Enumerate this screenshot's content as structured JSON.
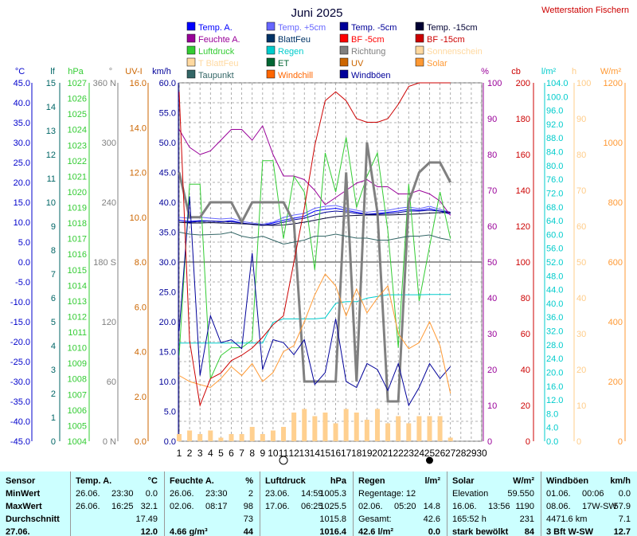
{
  "header": {
    "title": "Juni 2025",
    "station": "Wetterstation Fischern"
  },
  "legend": [
    {
      "label": "Temp. A.",
      "color": "#0000ff"
    },
    {
      "label": "Temp. +5cm",
      "color": "#6666ff"
    },
    {
      "label": "Temp. -5cm",
      "color": "#000099"
    },
    {
      "label": "Temp. -15cm",
      "color": "#000033"
    },
    {
      "label": "Feuchte A.",
      "color": "#990099"
    },
    {
      "label": "BlattFeu",
      "color": "#003366"
    },
    {
      "label": "BF -5cm",
      "color": "#ff0000"
    },
    {
      "label": "BF -15cm",
      "color": "#cc0000"
    },
    {
      "label": "Luftdruck",
      "color": "#33cc33"
    },
    {
      "label": "Regen",
      "color": "#00cccc"
    },
    {
      "label": "Richtung",
      "color": "#808080"
    },
    {
      "label": "Sonnenschein",
      "color": "#ffd9a0"
    },
    {
      "label": "T BlattFeu",
      "color": "#ffd9a0"
    },
    {
      "label": "ET",
      "color": "#006633"
    },
    {
      "label": "UV",
      "color": "#cc6600"
    },
    {
      "label": "Solar",
      "color": "#ff9933"
    },
    {
      "label": "Taupunkt",
      "color": "#336666"
    },
    {
      "label": "Windchill",
      "color": "#ff6600"
    },
    {
      "label": "Windböen",
      "color": "#000099"
    }
  ],
  "colors": {
    "grid": "#999999",
    "pressure": "#33cc33",
    "rain": "#00cccc",
    "humidity": "#990099",
    "wind": "#000099",
    "direction": "#808080",
    "uv": "#cc6600",
    "solar": "#ff9933",
    "cb": "#cc0000",
    "bars": "#ffd090"
  },
  "axes": {
    "temp": {
      "unit": "°C",
      "ticks": [
        "45.0",
        "40.0",
        "35.0",
        "30.0",
        "25.0",
        "20.0",
        "15.0",
        "10.0",
        "5.0",
        "0.0",
        "-5.0",
        "-10.0",
        "-15.0",
        "-20.0",
        "-25.0",
        "-30.0",
        "-35.0",
        "-40.0",
        "-45.0"
      ]
    },
    "lf": {
      "unit": "lf",
      "ticks": [
        "15",
        "14",
        "13",
        "12",
        "11",
        "10",
        "9",
        "8",
        "7",
        "6",
        "5",
        "4",
        "3",
        "2",
        "1",
        "0"
      ]
    },
    "hpa": {
      "unit": "hPa",
      "ticks": [
        "1027",
        "1026",
        "1025",
        "1024",
        "1023",
        "1022",
        "1021",
        "1020",
        "1019",
        "1018",
        "1017",
        "1016",
        "1015",
        "1014",
        "1013",
        "1012",
        "1011",
        "1010",
        "1009",
        "1008",
        "1007",
        "1006",
        "1005",
        "1004"
      ]
    },
    "dir": {
      "unit": "°",
      "ticks": [
        "360 N",
        "300",
        "240",
        "180 S",
        "120",
        "60",
        "0 N"
      ]
    },
    "uvi": {
      "unit": "UV-I",
      "ticks": [
        "16.0",
        "14.0",
        "12.0",
        "10.0",
        "8.0",
        "6.0",
        "4.0",
        "2.0",
        "0.0"
      ]
    },
    "kmh": {
      "unit": "km/h",
      "ticks": [
        "60.0",
        "55.0",
        "50.0",
        "45.0",
        "40.0",
        "35.0",
        "30.0",
        "25.0",
        "20.0",
        "15.0",
        "10.0",
        "5.0",
        "0.0"
      ]
    },
    "pct": {
      "unit": "%",
      "ticks": [
        "100",
        "90",
        "80",
        "70",
        "60",
        "50",
        "40",
        "30",
        "20",
        "10",
        "0"
      ]
    },
    "cb": {
      "unit": "cb",
      "ticks": [
        "200",
        "180",
        "160",
        "140",
        "120",
        "100",
        "80",
        "60",
        "40",
        "20",
        "0"
      ]
    },
    "lm2": {
      "unit": "l/m²",
      "ticks": [
        "104.0",
        "100.0",
        "96.0",
        "92.0",
        "88.0",
        "84.0",
        "80.0",
        "76.0",
        "72.0",
        "68.0",
        "64.0",
        "60.0",
        "56.0",
        "52.0",
        "48.0",
        "44.0",
        "40.0",
        "36.0",
        "32.0",
        "28.0",
        "24.0",
        "20.0",
        "16.0",
        "12.0",
        "8.0",
        "4.0",
        "0.0"
      ]
    },
    "h": {
      "unit": "h",
      "ticks": [
        "100",
        "90",
        "80",
        "70",
        "60",
        "50",
        "40",
        "30",
        "20",
        "10",
        "0"
      ]
    },
    "wm2": {
      "unit": "W/m²",
      "ticks": [
        "1200",
        "1000",
        "800",
        "600",
        "400",
        "200",
        "0"
      ]
    },
    "days": [
      "1",
      "2",
      "3",
      "4",
      "5",
      "6",
      "7",
      "8",
      "9",
      "10",
      "11",
      "12",
      "13",
      "14",
      "15",
      "16",
      "17",
      "18",
      "19",
      "20",
      "21",
      "22",
      "23",
      "24",
      "25",
      "26",
      "27",
      "28",
      "29",
      "30"
    ]
  },
  "chart_data": {
    "type": "line",
    "title": "Juni 2025",
    "x": [
      1,
      2,
      3,
      4,
      5,
      6,
      7,
      8,
      9,
      10,
      11,
      12,
      13,
      14,
      15,
      16,
      17,
      18,
      19,
      20,
      21,
      22,
      23,
      24,
      25,
      26,
      27
    ],
    "series": [
      {
        "name": "Temp. A.",
        "axis": "temp",
        "values": [
          10.5,
          10.2,
          10.4,
          10.3,
          10.1,
          10.4,
          9.8,
          9.5,
          9.2,
          9.8,
          10.5,
          11.0,
          11.5,
          12.8,
          13.2,
          13.5,
          13.0,
          12.5,
          12.0,
          12.2,
          12.5,
          12.8,
          13.2,
          13.0,
          13.4,
          12.8,
          12.0
        ]
      },
      {
        "name": "Temp. +5cm",
        "axis": "temp",
        "values": [
          11.2,
          11.0,
          11.3,
          11.0,
          10.8,
          11.0,
          10.2,
          9.8,
          9.5,
          10.0,
          11.2,
          11.8,
          12.2,
          13.5,
          14.0,
          14.2,
          13.5,
          13.0,
          12.5,
          12.8,
          13.0,
          13.5,
          13.8,
          13.4,
          14.0,
          13.2,
          12.5
        ]
      },
      {
        "name": "Temp. -5cm",
        "axis": "temp",
        "values": [
          10.0,
          10.0,
          10.2,
          10.3,
          10.2,
          10.1,
          9.8,
          9.4,
          9.2,
          9.4,
          10.0,
          10.6,
          11.0,
          11.8,
          12.5,
          12.8,
          12.6,
          12.2,
          12.0,
          12.0,
          12.2,
          12.4,
          12.8,
          12.8,
          13.0,
          12.8,
          12.5
        ]
      },
      {
        "name": "Temp. -15cm",
        "axis": "temp",
        "values": [
          10.0,
          9.8,
          9.8,
          9.9,
          9.8,
          9.7,
          9.6,
          9.5,
          9.3,
          9.2,
          9.3,
          9.6,
          10.0,
          10.5,
          11.0,
          11.4,
          11.6,
          11.7,
          11.8,
          11.8,
          11.8,
          11.9,
          12.0,
          12.1,
          12.3,
          12.4,
          12.4
        ]
      },
      {
        "name": "Feuchte A.",
        "axis": "pct",
        "values": [
          87,
          82,
          80,
          81,
          84,
          87,
          87,
          84,
          88,
          80,
          74,
          74,
          73,
          70,
          66,
          68,
          70,
          72,
          73,
          71,
          71,
          69,
          69,
          70,
          69,
          67,
          63
        ]
      },
      {
        "name": "Luftdruck",
        "axis": "hpa",
        "values": [
          1009.5,
          1020.5,
          1020.5,
          1008.0,
          1009.5,
          1010.0,
          1010.0,
          1010.5,
          1022.0,
          1022.0,
          1017.0,
          1021.0,
          1020.0,
          1015.0,
          1022.5,
          1020.0,
          1023.5,
          1019.0,
          1021.0,
          1022.5,
          1017.5,
          1010.0,
          1020.5,
          1013.0,
          1016.5,
          1020.0,
          1017.0
        ]
      },
      {
        "name": "Regen",
        "axis": "lm2",
        "values": [
          28.5,
          28.5,
          28.5,
          28.5,
          28.5,
          28.5,
          28.5,
          28.5,
          28.5,
          34.5,
          35.5,
          35.5,
          35.5,
          35.5,
          35.8,
          40.0,
          40.5,
          40.5,
          41.5,
          42.0,
          42.5,
          42.5,
          42.5,
          42.5,
          42.6,
          42.6,
          42.6
        ]
      },
      {
        "name": "Richtung",
        "axis": "dir",
        "values": [
          270,
          225,
          225,
          240,
          240,
          240,
          220,
          240,
          240,
          240,
          240,
          220,
          60,
          60,
          60,
          60,
          270,
          60,
          300,
          230,
          40,
          40,
          240,
          270,
          280,
          280,
          260
        ]
      },
      {
        "name": "Windböen",
        "axis": "kmh",
        "values": [
          18.5,
          41.0,
          11.0,
          21.0,
          16.5,
          17.0,
          15.5,
          31.5,
          12.0,
          17.0,
          16.5,
          14.5,
          17.0,
          9.5,
          11.5,
          20.5,
          10.0,
          9.0,
          13.0,
          12.0,
          8.5,
          13.0,
          6.0,
          9.0,
          13.0,
          10.5,
          12.5
        ]
      },
      {
        "name": "Taupunkt",
        "axis": "temp",
        "values": [
          7.5,
          7.0,
          6.8,
          6.9,
          7.0,
          7.5,
          6.5,
          6.0,
          6.5,
          5.5,
          4.5,
          5.0,
          5.5,
          6.5,
          6.5,
          7.0,
          6.5,
          6.0,
          6.0,
          5.5,
          5.5,
          6.0,
          6.5,
          6.5,
          6.8,
          6.0,
          5.5
        ]
      },
      {
        "name": "Solar",
        "axis": "wm2",
        "values": [
          220,
          200,
          190,
          180,
          210,
          250,
          220,
          260,
          200,
          230,
          300,
          320,
          400,
          490,
          560,
          520,
          420,
          510,
          430,
          480,
          520,
          360,
          310,
          330,
          400,
          320,
          160
        ]
      },
      {
        "name": "BF -15cm",
        "axis": "cb",
        "values": [
          195,
          56,
          20,
          35,
          38,
          45,
          48,
          52,
          58,
          65,
          70,
          100,
          130,
          165,
          190,
          195,
          190,
          180,
          178,
          178,
          180,
          188,
          198,
          200,
          200,
          200,
          200
        ]
      },
      {
        "name": "Sonnenschein",
        "axis": "h",
        "values": [
          2,
          3,
          2,
          3,
          1,
          2,
          2,
          4,
          2,
          3,
          4,
          8,
          9,
          7,
          8,
          5,
          9,
          8,
          6,
          9,
          5,
          7,
          5,
          7,
          7,
          7,
          1
        ]
      }
    ],
    "ylim": {
      "temp": [
        -45,
        45
      ],
      "hpa": [
        1004,
        1027
      ],
      "dir": [
        0,
        360
      ],
      "kmh": [
        0,
        60
      ],
      "pct": [
        0,
        100
      ],
      "cb": [
        0,
        200
      ],
      "lm2": [
        0,
        104
      ],
      "h": [
        0,
        100
      ],
      "wm2": [
        0,
        1200
      ]
    },
    "grid": true
  },
  "stats": {
    "columns": [
      {
        "header": "Sensor",
        "rows": [
          "MinWert",
          "MaxWert",
          "Durchschnitt",
          "27.06."
        ]
      },
      {
        "header": "Temp. A.",
        "unit": "°C",
        "rows": [
          [
            "26.06.",
            "23:30",
            "0.0"
          ],
          [
            "26.06.",
            "16:25",
            "32.1"
          ],
          [
            "",
            "",
            "17.49"
          ],
          [
            "",
            "",
            "12.0"
          ]
        ]
      },
      {
        "header": "Feuchte A.",
        "unit": "%",
        "rows": [
          [
            "26.06.",
            "23:30",
            "2"
          ],
          [
            "02.06.",
            "08:17",
            "98"
          ],
          [
            "",
            "",
            "73"
          ],
          [
            "4.66 g/m³",
            "",
            "44"
          ]
        ]
      },
      {
        "header": "Luftdruck",
        "unit": "hPa",
        "rows": [
          [
            "23.06.",
            "14:59",
            "1005.3"
          ],
          [
            "17.06.",
            "06:25",
            "1025.5"
          ],
          [
            "",
            "",
            "1015.8"
          ],
          [
            "",
            "",
            "1016.4"
          ]
        ]
      },
      {
        "header": "Regen",
        "unit": "l/m²",
        "rows": [
          [
            "Regentage: 12",
            "",
            ""
          ],
          [
            "02.06.",
            "05:20",
            "14.8"
          ],
          [
            "Gesamt:",
            "",
            "42.6"
          ],
          [
            "42.6 l/m²",
            "",
            "0.0"
          ]
        ]
      },
      {
        "header": "Solar",
        "unit": "W/m²",
        "rows": [
          [
            "Elevation",
            "",
            "59.550"
          ],
          [
            "16.06.",
            "13:56",
            "1190"
          ],
          [
            "165:52 h",
            "",
            "231"
          ],
          [
            "stark bewölkt",
            "",
            "84"
          ]
        ]
      },
      {
        "header": "Windböen",
        "unit": "km/h",
        "rows": [
          [
            "01.06.",
            "00:06",
            "0.0"
          ],
          [
            "08.06.",
            "17W-SW",
            "57.9"
          ],
          [
            "4471.6 km",
            "",
            "7.1"
          ],
          [
            "3 Bft W-SW",
            "",
            "12.7"
          ]
        ]
      }
    ]
  }
}
